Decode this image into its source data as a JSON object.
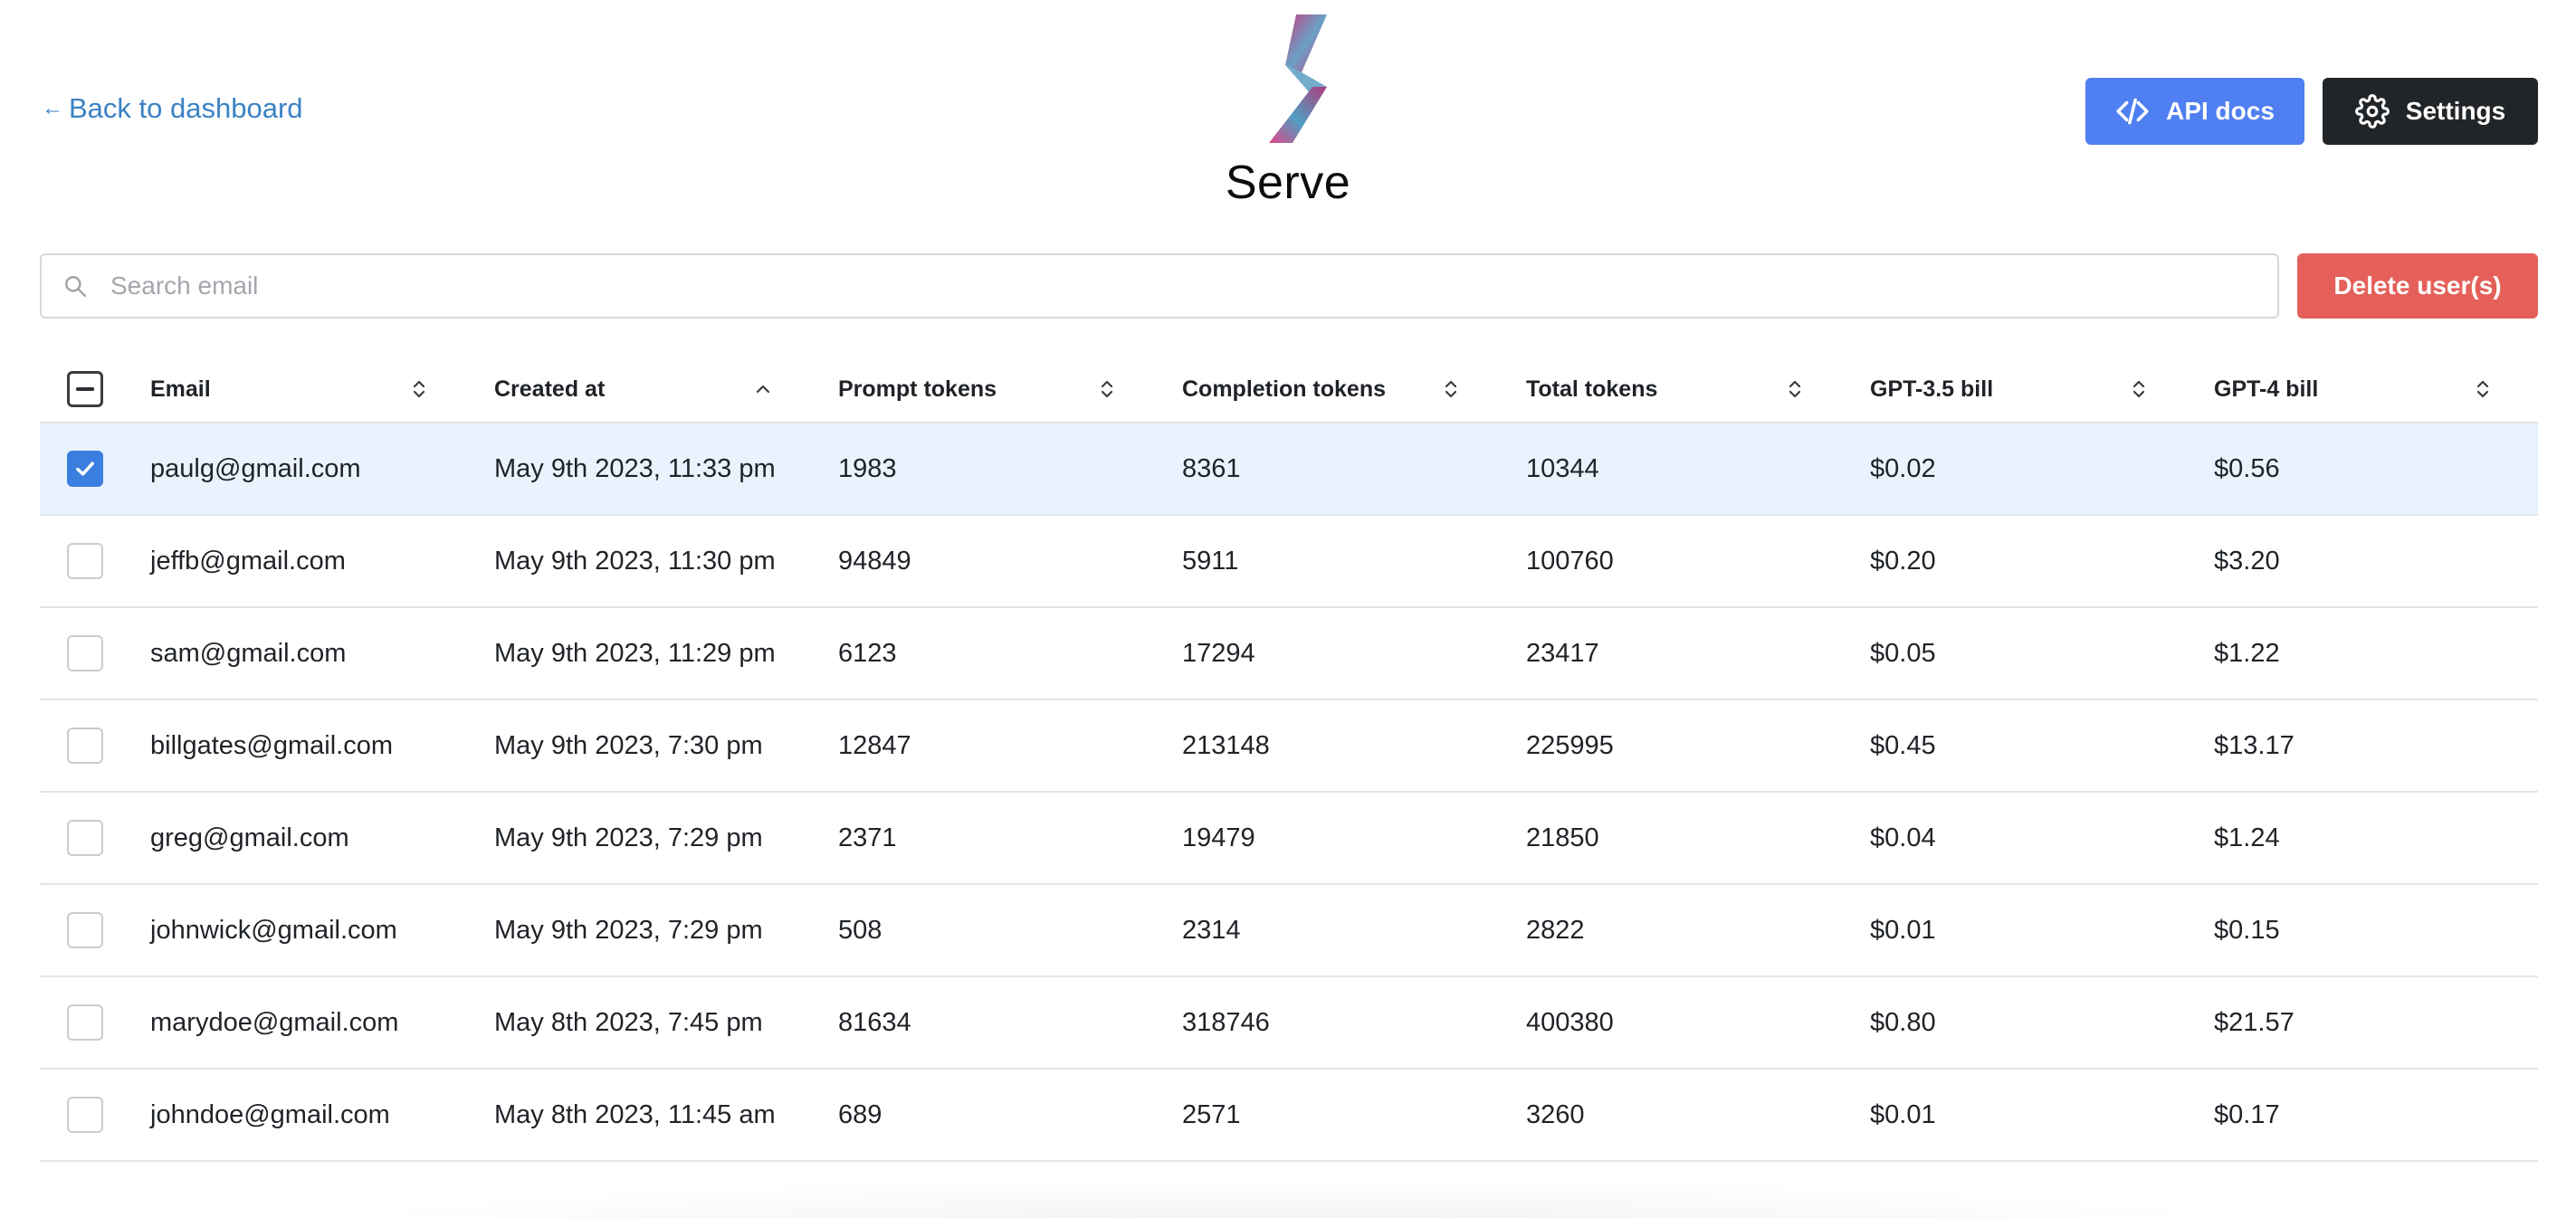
{
  "header": {
    "back_arrow": "←",
    "back_label": "Back to dashboard",
    "brand": "Serve",
    "api_docs_label": "API docs",
    "settings_label": "Settings"
  },
  "search": {
    "placeholder": "Search email",
    "value": ""
  },
  "actions": {
    "delete_label": "Delete user(s)"
  },
  "colors": {
    "link": "#3b82c4",
    "api_button": "#4f7ff0",
    "settings_button": "#222528",
    "delete_button": "#e5605a",
    "selected_row": "#e9f3fd",
    "checkbox_checked": "#3a7fe0"
  },
  "table": {
    "select_all_state": "indeterminate",
    "sorted_column": "Created at",
    "sort_direction": "ascending",
    "columns": [
      {
        "label": "Email",
        "sort_icon": "sort-icon"
      },
      {
        "label": "Created at",
        "sort_icon": "sort-up-icon"
      },
      {
        "label": "Prompt tokens",
        "sort_icon": "sort-icon"
      },
      {
        "label": "Completion tokens",
        "sort_icon": "sort-icon"
      },
      {
        "label": "Total tokens",
        "sort_icon": "sort-icon"
      },
      {
        "label": "GPT-3.5 bill",
        "sort_icon": "sort-icon"
      },
      {
        "label": "GPT-4 bill",
        "sort_icon": "sort-icon"
      }
    ],
    "rows": [
      {
        "selected": true,
        "email": "paulg@gmail.com",
        "created_at": "May 9th 2023, 11:33 pm",
        "prompt_tokens": "1983",
        "completion_tokens": "8361",
        "total_tokens": "10344",
        "gpt35_bill": "$0.02",
        "gpt4_bill": "$0.56"
      },
      {
        "selected": false,
        "email": "jeffb@gmail.com",
        "created_at": "May 9th 2023, 11:30 pm",
        "prompt_tokens": "94849",
        "completion_tokens": "5911",
        "total_tokens": "100760",
        "gpt35_bill": "$0.20",
        "gpt4_bill": "$3.20"
      },
      {
        "selected": false,
        "email": "sam@gmail.com",
        "created_at": "May 9th 2023, 11:29 pm",
        "prompt_tokens": "6123",
        "completion_tokens": "17294",
        "total_tokens": "23417",
        "gpt35_bill": "$0.05",
        "gpt4_bill": "$1.22"
      },
      {
        "selected": false,
        "email": "billgates@gmail.com",
        "created_at": "May 9th 2023, 7:30 pm",
        "prompt_tokens": "12847",
        "completion_tokens": "213148",
        "total_tokens": "225995",
        "gpt35_bill": "$0.45",
        "gpt4_bill": "$13.17"
      },
      {
        "selected": false,
        "email": "greg@gmail.com",
        "created_at": "May 9th 2023, 7:29 pm",
        "prompt_tokens": "2371",
        "completion_tokens": "19479",
        "total_tokens": "21850",
        "gpt35_bill": "$0.04",
        "gpt4_bill": "$1.24"
      },
      {
        "selected": false,
        "email": "johnwick@gmail.com",
        "created_at": "May 9th 2023, 7:29 pm",
        "prompt_tokens": "508",
        "completion_tokens": "2314",
        "total_tokens": "2822",
        "gpt35_bill": "$0.01",
        "gpt4_bill": "$0.15"
      },
      {
        "selected": false,
        "email": "marydoe@gmail.com",
        "created_at": "May 8th 2023, 7:45 pm",
        "prompt_tokens": "81634",
        "completion_tokens": "318746",
        "total_tokens": "400380",
        "gpt35_bill": "$0.80",
        "gpt4_bill": "$21.57"
      },
      {
        "selected": false,
        "email": "johndoe@gmail.com",
        "created_at": "May 8th 2023, 11:45 am",
        "prompt_tokens": "689",
        "completion_tokens": "2571",
        "total_tokens": "3260",
        "gpt35_bill": "$0.01",
        "gpt4_bill": "$0.17"
      }
    ]
  }
}
